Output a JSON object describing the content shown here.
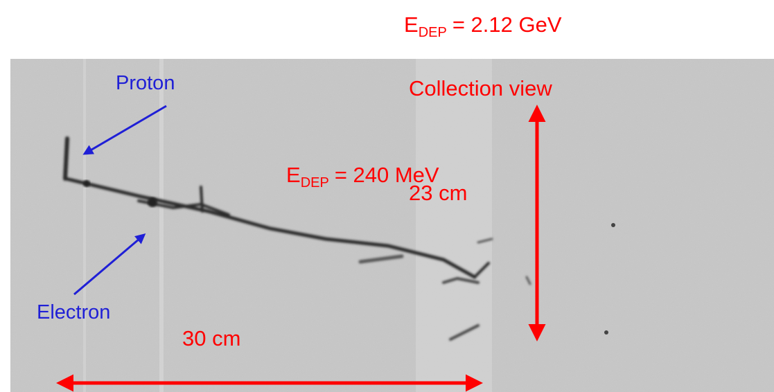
{
  "annotations": {
    "total_energy": {
      "symbol": "E",
      "subscript": "DEP",
      "value": "= 2.12 GeV"
    },
    "view_label": "Collection view",
    "proton_label": "Proton",
    "electron_label": "Electron",
    "track_energy": {
      "symbol": "E",
      "subscript": "DEP",
      "value": "= 240 MeV"
    },
    "height_label": "23 cm",
    "width_label": "30 cm"
  }
}
